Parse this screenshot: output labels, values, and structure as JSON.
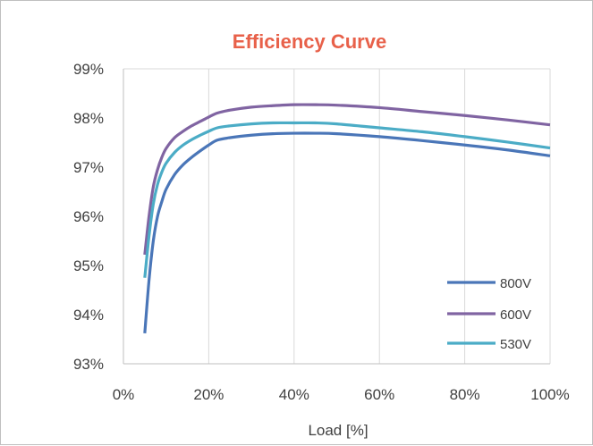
{
  "chart_data": {
    "type": "line",
    "title": "Efficiency Curve",
    "title_color": "#E8614A",
    "xlabel": "Load [%]",
    "ylabel": "",
    "xlim": [
      0,
      100
    ],
    "ylim": [
      93,
      99
    ],
    "x_ticks": [
      0,
      20,
      40,
      60,
      80,
      100
    ],
    "x_tick_labels": [
      "0%",
      "20%",
      "40%",
      "60%",
      "80%",
      "100%"
    ],
    "y_ticks": [
      93,
      94,
      95,
      96,
      97,
      98,
      99
    ],
    "y_tick_labels": [
      "93%",
      "94%",
      "95%",
      "96%",
      "97%",
      "98%",
      "99%"
    ],
    "grid": "vertical",
    "legend_position": "bottom-right",
    "series": [
      {
        "name": "800V",
        "color": "#4A76B8",
        "x": [
          5,
          6,
          7,
          8,
          9,
          10,
          12,
          14,
          16,
          18,
          20,
          22,
          25,
          30,
          35,
          40,
          45,
          50,
          60,
          70,
          80,
          90,
          100
        ],
        "y": [
          93.62,
          94.7,
          95.5,
          96.0,
          96.3,
          96.55,
          96.85,
          97.05,
          97.2,
          97.33,
          97.45,
          97.55,
          97.6,
          97.65,
          97.68,
          97.69,
          97.69,
          97.68,
          97.62,
          97.54,
          97.45,
          97.35,
          97.23
        ]
      },
      {
        "name": "600V",
        "color": "#8064A2",
        "x": [
          5,
          6,
          7,
          8,
          9,
          10,
          12,
          14,
          16,
          18,
          20,
          22,
          25,
          30,
          35,
          40,
          45,
          50,
          60,
          70,
          80,
          90,
          100
        ],
        "y": [
          95.22,
          96.0,
          96.6,
          96.95,
          97.2,
          97.38,
          97.6,
          97.73,
          97.84,
          97.93,
          98.02,
          98.1,
          98.16,
          98.22,
          98.25,
          98.27,
          98.27,
          98.26,
          98.21,
          98.13,
          98.05,
          97.96,
          97.86
        ]
      },
      {
        "name": "530V",
        "color": "#4BACC6",
        "x": [
          5,
          6,
          7,
          8,
          9,
          10,
          12,
          14,
          16,
          18,
          20,
          22,
          25,
          30,
          35,
          40,
          45,
          50,
          60,
          70,
          80,
          90,
          100
        ],
        "y": [
          94.75,
          95.6,
          96.25,
          96.65,
          96.9,
          97.08,
          97.3,
          97.45,
          97.56,
          97.65,
          97.73,
          97.8,
          97.84,
          97.88,
          97.9,
          97.9,
          97.9,
          97.88,
          97.8,
          97.72,
          97.62,
          97.51,
          97.39
        ]
      }
    ]
  }
}
